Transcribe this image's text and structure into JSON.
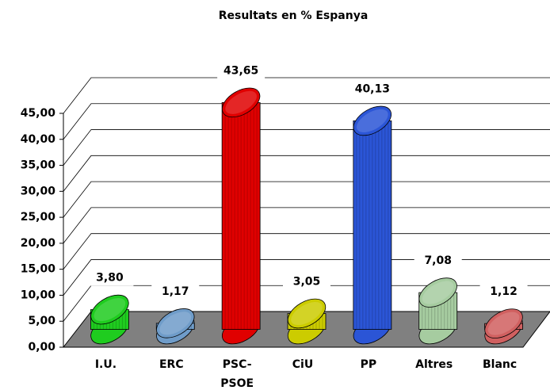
{
  "chart_data": {
    "type": "bar3d",
    "title": "Resultats en % Espanya",
    "categories": [
      "I.U.",
      "ERC",
      "PSC-PSOE",
      "CiU",
      "PP",
      "Altres",
      "Blanc"
    ],
    "values": [
      3.8,
      1.17,
      43.65,
      3.05,
      40.13,
      7.08,
      1.12
    ],
    "value_labels": [
      "3,80",
      "1,17",
      "43,65",
      "3,05",
      "40,13",
      "7,08",
      "1,12"
    ],
    "colors": [
      "#1fcc1f",
      "#6f9cc9",
      "#e00000",
      "#cccc00",
      "#2b55d6",
      "#a6cca0",
      "#d06060"
    ],
    "ylim": [
      0,
      45
    ],
    "yticks": [
      {
        "value": 0,
        "label": "0,00"
      },
      {
        "value": 5,
        "label": "5,00"
      },
      {
        "value": 10,
        "label": "10,00"
      },
      {
        "value": 15,
        "label": "15,00"
      },
      {
        "value": 20,
        "label": "20,00"
      },
      {
        "value": 25,
        "label": "25,00"
      },
      {
        "value": 30,
        "label": "30,00"
      },
      {
        "value": 35,
        "label": "35,00"
      },
      {
        "value": 40,
        "label": "40,00"
      },
      {
        "value": 45,
        "label": "45,00"
      }
    ],
    "grid": true
  }
}
